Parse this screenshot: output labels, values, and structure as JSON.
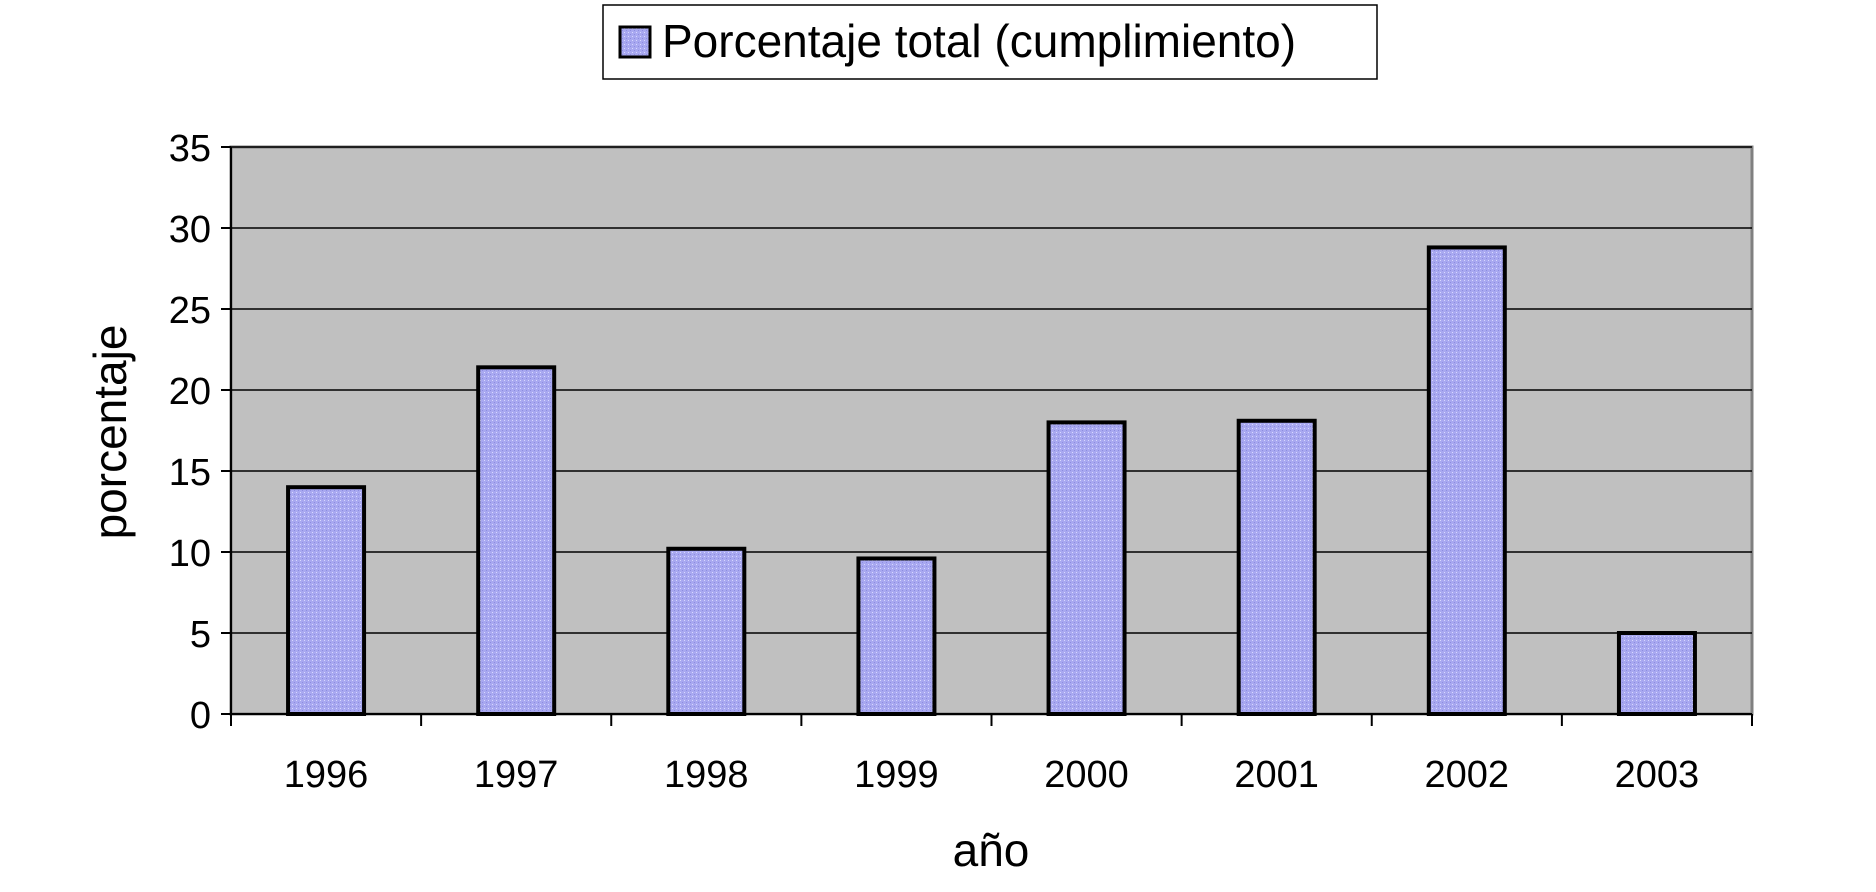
{
  "chart_data": {
    "type": "bar",
    "categories": [
      "1996",
      "1997",
      "1998",
      "1999",
      "2000",
      "2001",
      "2002",
      "2003"
    ],
    "series": [
      {
        "name": "Porcentaje total (cumplimiento)",
        "values": [
          14.0,
          21.4,
          10.2,
          9.6,
          18.0,
          18.1,
          28.8,
          5.0
        ]
      }
    ],
    "xlabel": "año",
    "ylabel": "porcentaje",
    "ylim": [
      0,
      35
    ],
    "yticks": [
      "0",
      "5",
      "10",
      "15",
      "20",
      "25",
      "30",
      "35"
    ],
    "grid": true,
    "legend_position": "top-center",
    "colors": {
      "plot_background": "#c0c0c0",
      "bar_fill": "#a8a8f0",
      "bar_stroke": "#000000",
      "gridline": "#000000"
    }
  }
}
